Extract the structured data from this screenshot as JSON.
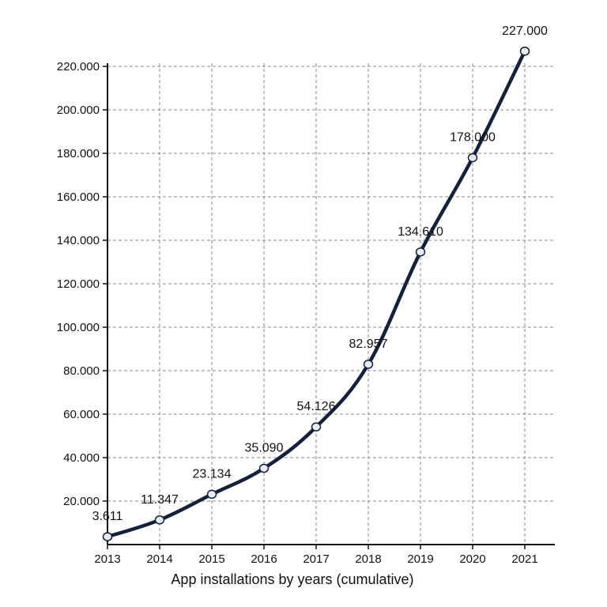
{
  "chart_data": {
    "type": "line",
    "title": "",
    "xlabel": "App installations by years (cumulative)",
    "ylabel": "",
    "categories": [
      "2013",
      "2014",
      "2015",
      "2016",
      "2017",
      "2018",
      "2019",
      "2020",
      "2021"
    ],
    "series": [
      {
        "values": [
          3611,
          11347,
          23134,
          35090,
          54126,
          82957,
          134610,
          178000,
          227000
        ]
      }
    ],
    "data_labels": [
      "3.611",
      "11.347",
      "23.134",
      "35.090",
      "54.126",
      "82.957",
      "134.610",
      "178.000",
      "227.000"
    ],
    "yticks": [
      20000,
      40000,
      60000,
      80000,
      100000,
      120000,
      140000,
      160000,
      180000,
      200000,
      220000
    ],
    "ytick_labels": [
      "20.000",
      "40.000",
      "60.000",
      "80.000",
      "100.000",
      "120.000",
      "140.000",
      "160.000",
      "180.000",
      "200.000",
      "220.000"
    ],
    "ylim": [
      0,
      220000
    ],
    "grid": true,
    "colors": {
      "line": "#14213d",
      "marker_fill": "#e9edf3",
      "grid": "#8a8a8a"
    }
  }
}
